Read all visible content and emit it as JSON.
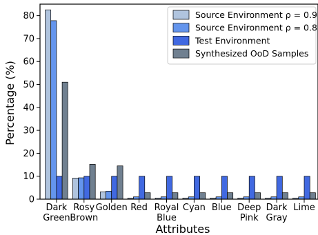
{
  "chart_data": {
    "type": "bar",
    "xlabel": "Attributes",
    "ylabel": "Percentage (%)",
    "ylim": [
      0,
      85
    ],
    "yticks": [
      0,
      10,
      20,
      30,
      40,
      50,
      60,
      70,
      80
    ],
    "grid": false,
    "legend_position": "top-right",
    "categories": [
      [
        "Dark",
        "Green"
      ],
      [
        "Rosy",
        "Brown"
      ],
      [
        "Golden"
      ],
      [
        "Red"
      ],
      [
        "Royal",
        "Blue"
      ],
      [
        "Cyan"
      ],
      [
        "Blue"
      ],
      [
        "Deep",
        "Pink"
      ],
      [
        "Dark",
        "Gray"
      ],
      [
        "Lime"
      ]
    ],
    "series": [
      {
        "name": "Source Environment ρ = 0.9",
        "color": "#b0c4de",
        "values": [
          82.5,
          9.2,
          3.2,
          0.5,
          0.5,
          0.5,
          0.5,
          0.5,
          0.5,
          0.5
        ]
      },
      {
        "name": "Source Environment ρ = 0.8",
        "color": "#6495ed",
        "values": [
          77.8,
          9.3,
          3.5,
          1.0,
          1.0,
          1.0,
          1.0,
          1.0,
          1.0,
          1.0
        ]
      },
      {
        "name": "Test Environment",
        "color": "#4169e1",
        "values": [
          10,
          10,
          10,
          10,
          10,
          10,
          10,
          10,
          10,
          10
        ]
      },
      {
        "name": "Synthesized OoD Samples",
        "color": "#708090",
        "values": [
          51,
          15.2,
          14.5,
          2.8,
          2.8,
          2.8,
          2.8,
          2.8,
          2.8,
          2.8
        ]
      }
    ]
  }
}
